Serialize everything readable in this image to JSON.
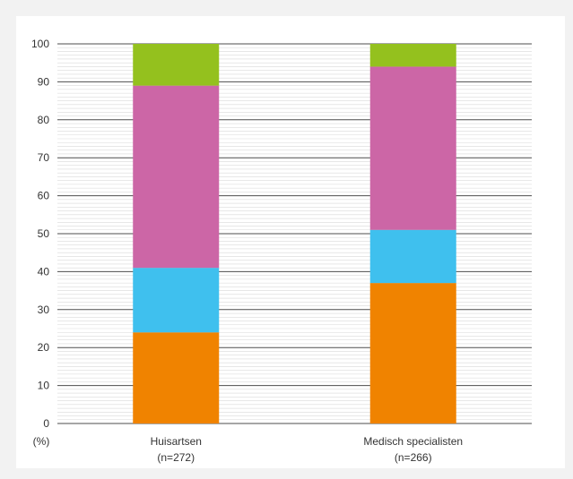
{
  "chart_data": {
    "type": "bar",
    "stacked": true,
    "categories": [
      {
        "name": "Huisartsen",
        "n": "(n=272)"
      },
      {
        "name": "Medisch specialisten",
        "n": "(n=266)"
      }
    ],
    "series": [
      {
        "values": [
          24,
          37
        ],
        "color": "#f08300"
      },
      {
        "values": [
          17,
          14
        ],
        "color": "#3fc0ee"
      },
      {
        "values": [
          48,
          43
        ],
        "color": "#cc66a6"
      },
      {
        "values": [
          11,
          6
        ],
        "color": "#94c11e"
      }
    ],
    "ylim": [
      0,
      100
    ],
    "yticks": [
      0,
      10,
      20,
      30,
      40,
      50,
      60,
      70,
      80,
      90,
      100
    ],
    "yunit": "(%)",
    "grid": true
  }
}
